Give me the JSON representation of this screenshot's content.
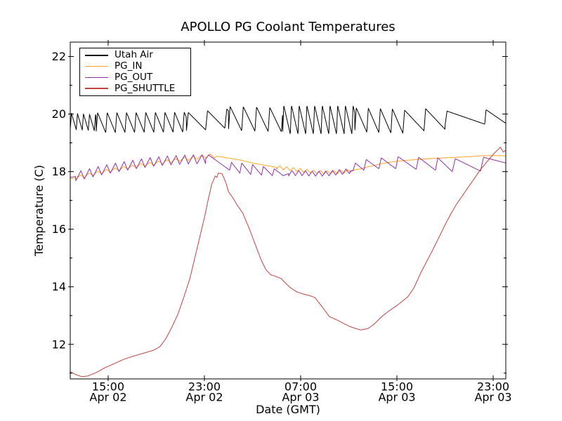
{
  "chart_data": {
    "type": "line",
    "title": "APOLLO PG Coolant Temperatures",
    "xlabel": "Date (GMT)",
    "ylabel": "Temperature (C)",
    "x_unit": "hours since Apr 02 12:00 GMT",
    "xlim": [
      -0.15,
      36.05
    ],
    "ylim": [
      10.8,
      22.5
    ],
    "grid": false,
    "background": "#ffffff",
    "axis_color": "#000000",
    "x_ticks": [
      {
        "t": 3,
        "line1": "15:00",
        "line2": "Apr 02"
      },
      {
        "t": 11,
        "line1": "23:00",
        "line2": "Apr 02"
      },
      {
        "t": 19,
        "line1": "07:00",
        "line2": "Apr 03"
      },
      {
        "t": 27,
        "line1": "15:00",
        "line2": "Apr 03"
      },
      {
        "t": 35,
        "line1": "23:00",
        "line2": "Apr 03"
      }
    ],
    "y_ticks": [
      12,
      14,
      16,
      18,
      20,
      22
    ],
    "y_minor_ticks": [
      11,
      13,
      15,
      17,
      19,
      21
    ],
    "legend": {
      "position": "upper-left",
      "entries": [
        "Utah Air",
        "PG_IN",
        "PG_OUT",
        "PG_SHUTTLE"
      ]
    },
    "teeth_model": "optional sawtooth ripple added to interpolated points: within each segment the value rises from -amp to +amp over the first (rise*period) hours, then falls linearly back over the rest of the period",
    "series": [
      {
        "name": "Utah Air",
        "color": "#000000",
        "points": [
          [
            -0.15,
            19.75
          ],
          [
            2,
            19.7
          ],
          [
            9.5,
            19.72
          ],
          [
            13,
            19.85
          ],
          [
            17.5,
            19.8
          ],
          [
            23.5,
            19.8
          ],
          [
            27.5,
            19.75
          ],
          [
            31,
            19.85
          ],
          [
            34.3,
            19.9
          ],
          [
            36.05,
            19.9
          ]
        ],
        "teeth": [
          {
            "t0": -0.15,
            "t1": 2,
            "period": 0.5,
            "amp": 0.28,
            "rise": 0.2
          },
          {
            "t0": 2,
            "t1": 9.5,
            "period": 0.8,
            "amp": 0.35,
            "rise": 0.15
          },
          {
            "t0": 9.5,
            "t1": 13,
            "period": 1.6,
            "amp": 0.33,
            "rise": 0.1
          },
          {
            "t0": 13,
            "t1": 17.5,
            "period": 1.1,
            "amp": 0.42,
            "rise": 0.12
          },
          {
            "t0": 17.5,
            "t1": 23.5,
            "period": 0.64,
            "amp": 0.5,
            "rise": 0.15
          },
          {
            "t0": 23.5,
            "t1": 27.5,
            "period": 1.0,
            "amp": 0.42,
            "rise": 0.12
          },
          {
            "t0": 27.5,
            "t1": 31,
            "period": 1.75,
            "amp": 0.38,
            "rise": 0.08
          },
          {
            "t0": 31,
            "t1": 34.3,
            "period": 3.3,
            "amp": 0.25,
            "rise": 0.05
          },
          {
            "t0": 34.3,
            "t1": 36.06,
            "period": 1.85,
            "amp": 0.25,
            "rise": 0.06
          }
        ]
      },
      {
        "name": "PG_IN",
        "color": "#ffa424",
        "points": [
          [
            -0.15,
            17.75
          ],
          [
            1,
            17.85
          ],
          [
            2,
            17.95
          ],
          [
            3,
            18.03
          ],
          [
            4,
            18.1
          ],
          [
            5,
            18.17
          ],
          [
            6,
            18.24
          ],
          [
            7,
            18.3
          ],
          [
            8,
            18.36
          ],
          [
            9,
            18.42
          ],
          [
            10,
            18.47
          ],
          [
            10.7,
            18.51
          ],
          [
            11.5,
            18.55
          ],
          [
            12.3,
            18.52
          ],
          [
            13,
            18.47
          ],
          [
            14,
            18.4
          ],
          [
            15,
            18.3
          ],
          [
            16,
            18.22
          ],
          [
            17,
            18.15
          ],
          [
            18,
            18.1
          ],
          [
            19,
            18.05
          ],
          [
            20,
            18.0
          ],
          [
            21,
            17.97
          ],
          [
            22,
            17.98
          ],
          [
            23,
            18.02
          ],
          [
            23.5,
            18.06
          ],
          [
            24,
            18.1
          ],
          [
            24.5,
            18.16
          ],
          [
            25,
            18.2
          ],
          [
            25.5,
            18.26
          ],
          [
            26,
            18.3
          ],
          [
            27,
            18.36
          ],
          [
            28,
            18.4
          ],
          [
            29,
            18.43
          ],
          [
            30,
            18.46
          ],
          [
            31,
            18.48
          ],
          [
            32,
            18.5
          ],
          [
            33,
            18.52
          ],
          [
            34,
            18.55
          ],
          [
            35,
            18.56
          ],
          [
            36.05,
            18.55
          ]
        ],
        "teeth": [
          {
            "t0": 0.3,
            "t1": 12,
            "period": 0.72,
            "amp": 0.06,
            "rise": 0.55
          },
          {
            "t0": 17,
            "t1": 23.2,
            "period": 0.56,
            "amp": 0.06,
            "rise": 0.5
          }
        ]
      },
      {
        "name": "PG_OUT",
        "color": "#942fa8",
        "points": [
          [
            -0.15,
            17.8
          ],
          [
            0.5,
            17.85
          ],
          [
            1.5,
            17.95
          ],
          [
            2.5,
            18.05
          ],
          [
            3.5,
            18.13
          ],
          [
            4.5,
            18.2
          ],
          [
            5.5,
            18.27
          ],
          [
            6.5,
            18.33
          ],
          [
            7.5,
            18.37
          ],
          [
            8.5,
            18.4
          ],
          [
            9.5,
            18.42
          ],
          [
            10.5,
            18.43
          ],
          [
            11.1,
            18.43
          ],
          [
            11.35,
            18.58
          ],
          [
            13.1,
            18.05
          ],
          [
            13.25,
            18.32
          ],
          [
            13.95,
            17.95
          ],
          [
            14.1,
            18.3
          ],
          [
            14.85,
            17.9
          ],
          [
            15.0,
            18.25
          ],
          [
            15.75,
            17.88
          ],
          [
            15.9,
            18.18
          ],
          [
            16.65,
            17.86
          ],
          [
            16.8,
            18.1
          ],
          [
            17.55,
            17.86
          ],
          [
            18.1,
            17.95
          ],
          [
            19,
            17.95
          ],
          [
            20,
            17.93
          ],
          [
            21,
            17.93
          ],
          [
            22,
            17.97
          ],
          [
            23.1,
            18.02
          ],
          [
            23.35,
            18.03
          ],
          [
            23.55,
            18.3
          ],
          [
            24.25,
            18.05
          ],
          [
            24.45,
            18.42
          ],
          [
            25.5,
            18.1
          ],
          [
            25.7,
            18.48
          ],
          [
            26.9,
            18.1
          ],
          [
            27.1,
            18.52
          ],
          [
            28.6,
            18.08
          ],
          [
            28.8,
            18.5
          ],
          [
            30.2,
            18.05
          ],
          [
            30.4,
            18.48
          ],
          [
            31.6,
            18.0
          ],
          [
            31.85,
            18.45
          ],
          [
            33.95,
            18.02
          ],
          [
            34.2,
            18.5
          ],
          [
            36.05,
            18.3
          ]
        ],
        "teeth": [
          {
            "t0": 0.3,
            "t1": 11.1,
            "period": 0.72,
            "amp": 0.16,
            "rise": 0.6
          },
          {
            "t0": 18.0,
            "t1": 23.1,
            "period": 0.56,
            "amp": 0.09,
            "rise": 0.5
          }
        ]
      },
      {
        "name": "PG_SHUTTLE",
        "color": "#c24240",
        "points": [
          [
            -0.15,
            11.05
          ],
          [
            0.3,
            10.95
          ],
          [
            0.8,
            10.88
          ],
          [
            1.3,
            10.9
          ],
          [
            2,
            11.02
          ],
          [
            2.7,
            11.18
          ],
          [
            3.5,
            11.33
          ],
          [
            4.3,
            11.48
          ],
          [
            5,
            11.58
          ],
          [
            6,
            11.7
          ],
          [
            6.8,
            11.8
          ],
          [
            7.3,
            11.92
          ],
          [
            7.8,
            12.2
          ],
          [
            8.3,
            12.6
          ],
          [
            8.8,
            13.05
          ],
          [
            9.3,
            13.65
          ],
          [
            9.8,
            14.3
          ],
          [
            10.2,
            15.0
          ],
          [
            10.6,
            15.7
          ],
          [
            11.0,
            16.4
          ],
          [
            11.3,
            17.0
          ],
          [
            11.6,
            17.55
          ],
          [
            11.9,
            17.85
          ],
          [
            12.05,
            17.8
          ],
          [
            12.15,
            17.95
          ],
          [
            12.45,
            17.93
          ],
          [
            12.6,
            17.8
          ],
          [
            12.8,
            17.6
          ],
          [
            13.0,
            17.3
          ],
          [
            13.35,
            17.1
          ],
          [
            13.7,
            16.85
          ],
          [
            14.2,
            16.55
          ],
          [
            14.7,
            16.05
          ],
          [
            15.2,
            15.5
          ],
          [
            15.7,
            14.95
          ],
          [
            16.1,
            14.6
          ],
          [
            16.5,
            14.42
          ],
          [
            17.0,
            14.35
          ],
          [
            17.4,
            14.28
          ],
          [
            17.8,
            14.1
          ],
          [
            18.2,
            13.95
          ],
          [
            18.7,
            13.82
          ],
          [
            19.2,
            13.75
          ],
          [
            19.7,
            13.7
          ],
          [
            20.2,
            13.62
          ],
          [
            20.7,
            13.35
          ],
          [
            21.4,
            12.96
          ],
          [
            22.0,
            12.85
          ],
          [
            22.6,
            12.72
          ],
          [
            23.1,
            12.62
          ],
          [
            23.5,
            12.56
          ],
          [
            24.0,
            12.5
          ],
          [
            24.6,
            12.55
          ],
          [
            25.1,
            12.7
          ],
          [
            25.7,
            12.95
          ],
          [
            26.3,
            13.15
          ],
          [
            27.1,
            13.38
          ],
          [
            27.9,
            13.65
          ],
          [
            28.4,
            13.95
          ],
          [
            29.0,
            14.5
          ],
          [
            29.5,
            14.9
          ],
          [
            30.0,
            15.3
          ],
          [
            30.5,
            15.72
          ],
          [
            31.0,
            16.15
          ],
          [
            31.5,
            16.55
          ],
          [
            32.0,
            16.9
          ],
          [
            32.5,
            17.2
          ],
          [
            33.0,
            17.5
          ],
          [
            33.5,
            17.8
          ],
          [
            33.9,
            18.05
          ],
          [
            34.5,
            18.35
          ],
          [
            35.0,
            18.6
          ],
          [
            35.6,
            18.85
          ],
          [
            35.85,
            18.68
          ],
          [
            36.05,
            18.75
          ]
        ]
      }
    ]
  }
}
